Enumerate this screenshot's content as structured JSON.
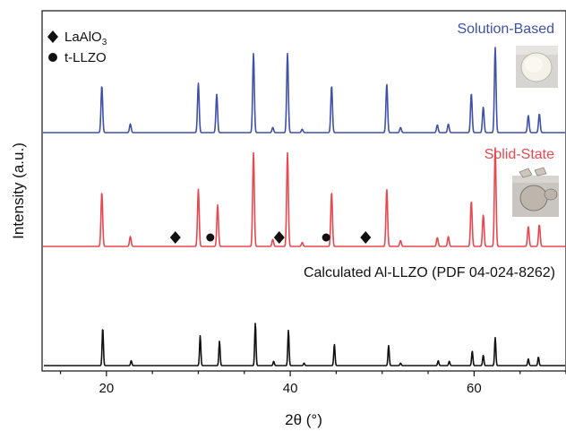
{
  "chart_data": {
    "type": "line",
    "xlabel": "2θ (°)",
    "ylabel": "Intensity (a.u.)",
    "xlim": [
      13,
      70
    ],
    "xticks": [
      20,
      40,
      60
    ],
    "y_ticks_shown": false,
    "legend": {
      "placement": "top-left",
      "entries": [
        {
          "marker": "diamond",
          "label": "LaAlO",
          "subscript": "3"
        },
        {
          "marker": "circle",
          "label": "t-LLZO"
        }
      ]
    },
    "series": [
      {
        "name": "Solution-Based",
        "color": "#3f51a8",
        "label_placement": "top-right",
        "inset_photo": "white-pellet-disc",
        "peaks": [
          {
            "x": 19.5,
            "h": 0.55
          },
          {
            "x": 22.6,
            "h": 0.1
          },
          {
            "x": 30.0,
            "h": 0.58
          },
          {
            "x": 32.0,
            "h": 0.45
          },
          {
            "x": 36.0,
            "h": 0.93
          },
          {
            "x": 38.1,
            "h": 0.06
          },
          {
            "x": 39.7,
            "h": 0.93
          },
          {
            "x": 41.3,
            "h": 0.04
          },
          {
            "x": 44.5,
            "h": 0.55
          },
          {
            "x": 50.5,
            "h": 0.57
          },
          {
            "x": 52.0,
            "h": 0.06
          },
          {
            "x": 56.0,
            "h": 0.09
          },
          {
            "x": 57.2,
            "h": 0.1
          },
          {
            "x": 59.7,
            "h": 0.46
          },
          {
            "x": 61.0,
            "h": 0.3
          },
          {
            "x": 62.3,
            "h": 1.0
          },
          {
            "x": 65.9,
            "h": 0.2
          },
          {
            "x": 67.1,
            "h": 0.22
          }
        ]
      },
      {
        "name": "Solid-State",
        "color": "#e8484f",
        "label_placement": "right",
        "inset_photo": "broken-pellet-fragments",
        "peaks": [
          {
            "x": 19.5,
            "h": 0.55
          },
          {
            "x": 22.6,
            "h": 0.1
          },
          {
            "x": 30.0,
            "h": 0.58
          },
          {
            "x": 32.1,
            "h": 0.42
          },
          {
            "x": 36.0,
            "h": 0.95
          },
          {
            "x": 38.1,
            "h": 0.07
          },
          {
            "x": 39.7,
            "h": 0.95
          },
          {
            "x": 41.3,
            "h": 0.04
          },
          {
            "x": 44.5,
            "h": 0.55
          },
          {
            "x": 50.5,
            "h": 0.58
          },
          {
            "x": 52.0,
            "h": 0.06
          },
          {
            "x": 56.0,
            "h": 0.09
          },
          {
            "x": 57.2,
            "h": 0.1
          },
          {
            "x": 59.7,
            "h": 0.46
          },
          {
            "x": 61.0,
            "h": 0.32
          },
          {
            "x": 62.3,
            "h": 1.0
          },
          {
            "x": 65.9,
            "h": 0.2
          },
          {
            "x": 67.1,
            "h": 0.22
          }
        ],
        "impurity_markers": [
          {
            "x": 27.5,
            "marker": "diamond"
          },
          {
            "x": 31.3,
            "marker": "circle"
          },
          {
            "x": 38.8,
            "marker": "diamond"
          },
          {
            "x": 43.9,
            "marker": "circle"
          },
          {
            "x": 48.2,
            "marker": "diamond"
          }
        ]
      },
      {
        "name": "Calculated Al-LLZO (PDF 04-024-8262)",
        "color": "#111111",
        "label_placement": "above-trace",
        "peaks": [
          {
            "x": 19.6,
            "h": 0.62
          },
          {
            "x": 22.7,
            "h": 0.08
          },
          {
            "x": 30.2,
            "h": 0.49
          },
          {
            "x": 32.3,
            "h": 0.4
          },
          {
            "x": 36.2,
            "h": 0.7
          },
          {
            "x": 38.2,
            "h": 0.07
          },
          {
            "x": 39.8,
            "h": 0.58
          },
          {
            "x": 41.5,
            "h": 0.04
          },
          {
            "x": 44.8,
            "h": 0.35
          },
          {
            "x": 50.7,
            "h": 0.33
          },
          {
            "x": 52.0,
            "h": 0.04
          },
          {
            "x": 56.1,
            "h": 0.08
          },
          {
            "x": 57.3,
            "h": 0.07
          },
          {
            "x": 59.8,
            "h": 0.24
          },
          {
            "x": 61.0,
            "h": 0.17
          },
          {
            "x": 62.3,
            "h": 0.46
          },
          {
            "x": 65.9,
            "h": 0.11
          },
          {
            "x": 67.0,
            "h": 0.14
          }
        ]
      }
    ]
  }
}
